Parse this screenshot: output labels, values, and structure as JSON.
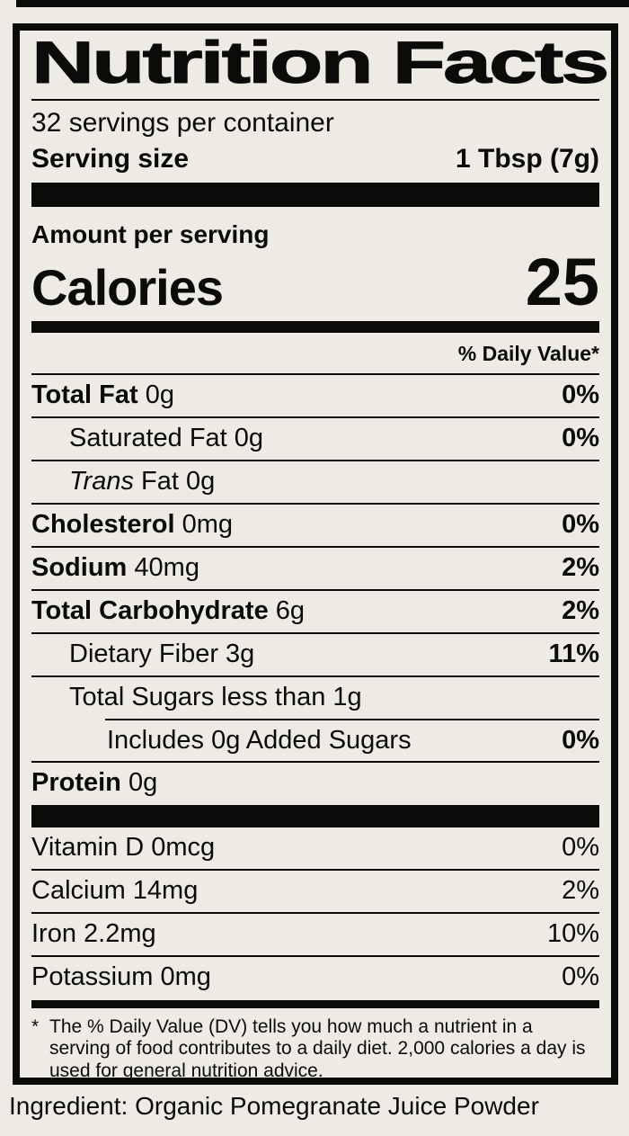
{
  "colors": {
    "background": "#EDEBE3",
    "ink": "#0B0B0A"
  },
  "label": {
    "title": "Nutrition Facts",
    "servings_per_container": "32 servings per container",
    "serving_size": {
      "label": "Serving size",
      "value": "1 Tbsp (7g)"
    },
    "amount_per_serving": "Amount per serving",
    "calories": {
      "label": "Calories",
      "value": "25"
    },
    "daily_value_header": "% Daily Value*",
    "nutrients": [
      {
        "strong": "Total Fat",
        "text": " 0g",
        "dv": "0%",
        "indent": 0
      },
      {
        "text": "Saturated Fat 0g",
        "dv": "0%",
        "indent": 1
      },
      {
        "em": "Trans",
        "text": " Fat 0g",
        "dv": "",
        "indent": 1
      },
      {
        "strong": "Cholesterol",
        "text": " 0mg",
        "dv": "0%",
        "indent": 0
      },
      {
        "strong": "Sodium",
        "text": " 40mg",
        "dv": "2%",
        "indent": 0
      },
      {
        "strong": "Total Carbohydrate",
        "text": " 6g",
        "dv": "2%",
        "indent": 0
      },
      {
        "text": "Dietary Fiber 3g",
        "dv": "11%",
        "indent": 1
      },
      {
        "text": "Total Sugars less than 1g",
        "dv": "",
        "indent": 1
      },
      {
        "text": "Includes 0g Added Sugars",
        "dv": "0%",
        "indent": 2,
        "rule_indent": true
      },
      {
        "strong": "Protein",
        "text": " 0g",
        "dv": "",
        "indent": 0
      }
    ],
    "vitamins": [
      {
        "text": "Vitamin D 0mcg",
        "dv": "0%"
      },
      {
        "text": "Calcium 14mg",
        "dv": "2%"
      },
      {
        "text": "Iron 2.2mg",
        "dv": "10%"
      },
      {
        "text": "Potassium 0mg",
        "dv": "0%"
      }
    ],
    "footnote_marker": "*",
    "footnote": "The % Daily Value (DV) tells you how much a nutrient in a serving of food contributes to a daily diet. 2,000 calories a day is used for general nutrition advice."
  },
  "ingredient_line": "Ingredient: Organic Pomegranate Juice Powder"
}
